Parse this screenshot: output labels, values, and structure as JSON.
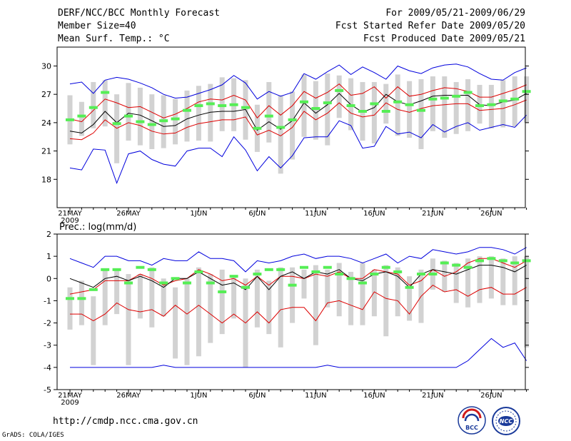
{
  "header": {
    "title": "DERF/NCC/BCC Monthly Forecast",
    "members": "Member Size=40",
    "variable": "Mean Surf. Temp.: °C",
    "period": "For 2009/05/21-2009/06/29",
    "started": "Fcst Started Refer Date 2009/05/20",
    "produced": "Fcst Produced Date 2009/05/21"
  },
  "footer": {
    "url": "http://cmdp.ncc.cma.gov.cn",
    "credit": "GrADS: COLA/IGES",
    "logo_bcc": "BCC",
    "logo_ncc": "NCC"
  },
  "colors": {
    "bar": "#d2d2d2",
    "median": "#55ee55",
    "mean": "#000000",
    "spread": "#dd0000",
    "extremes": "#0000dd"
  },
  "chart_data": [
    {
      "type": "line",
      "name": "temperature",
      "title": "",
      "ylabel": "Mean Surf. Temp.: °C",
      "ylim": [
        15,
        32
      ],
      "yticks": [
        18,
        21,
        24,
        27,
        30
      ],
      "x_tick_labels": [
        "21MAY",
        "26MAY",
        "1JUN",
        "6JUN",
        "11JUN",
        "16JUN",
        "21JUN",
        "26JUN"
      ],
      "x_tick_days": [
        0,
        5,
        11,
        16,
        21,
        26,
        31,
        36
      ],
      "year_label": "2009",
      "days": 40,
      "series": [
        {
          "name": "max",
          "color": "#0000dd",
          "values": [
            28.1,
            28.3,
            27.1,
            28.5,
            28.8,
            28.6,
            28.2,
            27.7,
            27.0,
            26.6,
            26.7,
            27.1,
            27.5,
            28.0,
            29.0,
            28.2,
            26.5,
            27.3,
            26.8,
            27.2,
            29.2,
            28.6,
            29.4,
            30.1,
            29.1,
            29.9,
            29.3,
            28.6,
            30.0,
            29.5,
            29.2,
            29.8,
            30.1,
            30.2,
            29.9,
            29.2,
            28.6,
            28.5,
            29.3,
            29.8
          ]
        },
        {
          "name": "mean_plus_sd",
          "color": "#dd0000",
          "values": [
            24.4,
            24.1,
            25.3,
            26.5,
            26.1,
            25.6,
            25.7,
            25.1,
            24.5,
            24.9,
            25.5,
            26.2,
            26.5,
            26.4,
            26.9,
            26.4,
            24.5,
            25.8,
            24.8,
            25.8,
            27.3,
            26.6,
            27.2,
            28.1,
            26.9,
            27.1,
            27.8,
            26.6,
            27.8,
            26.8,
            27.0,
            27.4,
            27.7,
            27.6,
            27.3,
            26.7,
            26.7,
            27.1,
            27.5,
            28.0
          ]
        },
        {
          "name": "mean",
          "color": "#000000",
          "values": [
            23.1,
            22.9,
            23.8,
            25.2,
            24.0,
            25.0,
            24.8,
            24.2,
            23.6,
            23.7,
            24.4,
            24.8,
            25.1,
            25.2,
            25.2,
            25.4,
            23.2,
            24.1,
            23.3,
            24.2,
            26.1,
            25.0,
            25.9,
            27.1,
            25.9,
            25.1,
            25.6,
            27.0,
            26.2,
            25.9,
            26.3,
            26.8,
            26.9,
            26.9,
            26.9,
            25.9,
            25.8,
            26.2,
            26.4,
            27.1
          ]
        },
        {
          "name": "mean_minus_sd",
          "color": "#dd0000",
          "values": [
            22.3,
            22.2,
            22.9,
            24.3,
            23.4,
            24.0,
            23.7,
            23.1,
            22.8,
            22.9,
            23.5,
            23.9,
            24.1,
            24.3,
            24.3,
            24.6,
            22.7,
            23.2,
            22.6,
            23.5,
            25.2,
            24.3,
            25.0,
            26.1,
            25.0,
            24.6,
            24.8,
            26.1,
            25.4,
            25.1,
            25.5,
            25.8,
            25.9,
            26.0,
            26.0,
            25.3,
            25.4,
            25.5,
            25.9,
            26.4
          ]
        },
        {
          "name": "min",
          "color": "#0000dd",
          "values": [
            19.2,
            19.0,
            21.2,
            21.1,
            17.6,
            20.7,
            21.0,
            20.1,
            19.6,
            19.4,
            21.0,
            21.3,
            21.3,
            20.4,
            22.5,
            21.1,
            18.9,
            20.4,
            19.2,
            20.5,
            22.4,
            22.5,
            22.5,
            24.2,
            23.7,
            21.3,
            21.5,
            23.6,
            22.8,
            23.0,
            22.4,
            23.8,
            23.0,
            23.6,
            24.0,
            23.2,
            23.5,
            23.8,
            23.5,
            24.8
          ]
        }
      ],
      "bars": {
        "low": [
          21.7,
          22.6,
          23.4,
          23.6,
          19.7,
          22.1,
          21.6,
          21.2,
          21.3,
          21.7,
          22.0,
          22.1,
          22.0,
          23.1,
          23.1,
          22.2,
          20.9,
          21.9,
          18.6,
          20.1,
          22.5,
          22.2,
          21.6,
          24.5,
          23.2,
          22.1,
          21.8,
          23.9,
          22.6,
          22.4,
          21.2,
          23.1,
          22.4,
          22.8,
          23.1,
          23.9,
          23.4,
          23.5,
          23.6,
          24.0
        ],
        "high": [
          26.9,
          26.2,
          28.3,
          28.5,
          27.0,
          28.2,
          27.7,
          27.0,
          26.9,
          26.5,
          27.4,
          27.9,
          28.1,
          28.8,
          28.7,
          28.5,
          25.9,
          28.3,
          26.9,
          27.3,
          29.1,
          28.4,
          29.2,
          29.0,
          28.7,
          28.3,
          28.3,
          28.1,
          29.1,
          28.4,
          28.6,
          28.9,
          28.9,
          28.3,
          28.6,
          28.0,
          28.0,
          28.5,
          28.9,
          28.9
        ]
      },
      "median": [
        24.3,
        24.7,
        25.6,
        27.2,
        23.9,
        24.7,
        24.1,
        23.8,
        24.2,
        24.4,
        25.3,
        25.8,
        26.0,
        25.8,
        25.9,
        25.6,
        23.4,
        24.7,
        23.5,
        24.3,
        26.2,
        25.5,
        26.1,
        27.4,
        25.8,
        25.2,
        26.0,
        25.2,
        26.2,
        25.9,
        25.3,
        26.5,
        26.6,
        26.8,
        27.2,
        25.8,
        25.9,
        26.3,
        26.5,
        27.3
      ]
    },
    {
      "type": "line",
      "name": "precipitation",
      "title": "",
      "ylabel": "Prec.: log(mm/d)",
      "ylim": [
        -5,
        2
      ],
      "yticks": [
        -5,
        -4,
        -3,
        -2,
        -1,
        0,
        1,
        2
      ],
      "x_tick_labels": [
        "21MAY",
        "26MAY",
        "1JUN",
        "6JUN",
        "11JUN",
        "16JUN",
        "21JUN",
        "26JUN"
      ],
      "x_tick_days": [
        0,
        5,
        11,
        16,
        21,
        26,
        31,
        36
      ],
      "year_label": "2009",
      "days": 40,
      "series": [
        {
          "name": "max",
          "color": "#0000dd",
          "values": [
            0.9,
            0.7,
            0.5,
            1.0,
            1.0,
            0.8,
            0.8,
            0.6,
            0.9,
            0.8,
            0.8,
            1.2,
            0.9,
            0.9,
            0.8,
            0.3,
            0.8,
            0.7,
            0.8,
            1.0,
            1.1,
            0.9,
            1.0,
            1.0,
            0.9,
            0.7,
            0.9,
            1.1,
            0.7,
            1.0,
            0.9,
            1.3,
            1.2,
            1.1,
            1.2,
            1.4,
            1.4,
            1.3,
            1.1,
            1.4
          ]
        },
        {
          "name": "mean_plus_sd",
          "color": "#dd0000",
          "values": [
            -0.7,
            -0.6,
            -0.5,
            -0.1,
            -0.1,
            -0.1,
            0.2,
            0.0,
            -0.3,
            -0.1,
            0.0,
            0.4,
            0.2,
            -0.1,
            0.0,
            -0.3,
            0.1,
            -0.3,
            0.1,
            0.1,
            0.0,
            0.2,
            0.1,
            0.3,
            0.0,
            0.0,
            0.4,
            0.3,
            0.2,
            -0.3,
            -0.1,
            0.4,
            0.1,
            0.3,
            0.7,
            0.9,
            0.9,
            0.7,
            0.5,
            0.8
          ]
        },
        {
          "name": "mean",
          "color": "#000000",
          "values": [
            0.0,
            -0.2,
            -0.4,
            0.0,
            0.1,
            -0.1,
            0.1,
            -0.1,
            -0.4,
            0.0,
            0.0,
            0.3,
            0.0,
            -0.3,
            -0.2,
            -0.5,
            0.1,
            -0.5,
            0.1,
            0.3,
            0.0,
            0.3,
            0.2,
            0.4,
            0.0,
            -0.1,
            0.2,
            0.3,
            0.1,
            -0.4,
            0.2,
            0.4,
            0.3,
            0.2,
            0.4,
            0.6,
            0.6,
            0.5,
            0.3,
            0.6
          ]
        },
        {
          "name": "mean_minus_sd",
          "color": "#dd0000",
          "values": [
            -1.6,
            -1.6,
            -1.9,
            -1.6,
            -1.1,
            -1.4,
            -1.5,
            -1.4,
            -1.7,
            -1.2,
            -1.6,
            -1.2,
            -1.6,
            -2.0,
            -1.6,
            -2.0,
            -1.5,
            -2.0,
            -1.4,
            -1.3,
            -1.3,
            -1.9,
            -1.1,
            -1.0,
            -1.2,
            -1.4,
            -0.6,
            -0.9,
            -1.0,
            -1.6,
            -0.8,
            -0.3,
            -0.6,
            -0.5,
            -0.8,
            -0.5,
            -0.4,
            -0.7,
            -0.7,
            -0.4
          ]
        },
        {
          "name": "min",
          "color": "#0000dd",
          "values": [
            -4.0,
            -4.0,
            -4.0,
            -4.0,
            -4.0,
            -4.0,
            -4.0,
            -4.0,
            -3.9,
            -4.0,
            -4.0,
            -4.0,
            -4.0,
            -4.0,
            -4.0,
            -4.0,
            -4.0,
            -4.0,
            -4.0,
            -4.0,
            -4.0,
            -4.0,
            -3.9,
            -4.0,
            -4.0,
            -4.0,
            -4.0,
            -4.0,
            -4.0,
            -4.0,
            -4.0,
            -4.0,
            -4.0,
            -4.0,
            -3.7,
            -3.2,
            -2.7,
            -3.1,
            -2.9,
            -3.7
          ]
        }
      ],
      "bars": {
        "low": [
          -2.3,
          -2.1,
          -3.9,
          -2.1,
          -1.6,
          -3.9,
          -1.8,
          -2.2,
          -1.7,
          -3.6,
          -3.9,
          -3.5,
          -2.9,
          -2.5,
          -1.8,
          -4.0,
          -2.2,
          -2.5,
          -3.1,
          -2.0,
          -0.9,
          -3.0,
          -1.3,
          -1.7,
          -2.1,
          -2.1,
          -1.7,
          -2.6,
          -1.7,
          -1.9,
          -2.0,
          -0.5,
          -0.6,
          -1.1,
          -1.3,
          -1.1,
          -0.9,
          -1.2,
          -1.2,
          -3.1
        ],
        "high": [
          -0.4,
          -0.1,
          -0.8,
          0.4,
          0.4,
          0.2,
          0.2,
          0.5,
          0.0,
          -0.4,
          0.0,
          0.5,
          0.2,
          0.4,
          0.1,
          0.0,
          0.4,
          -0.1,
          0.5,
          0.5,
          0.4,
          0.6,
          0.4,
          0.7,
          0.3,
          0.7,
          0.4,
          0.6,
          0.5,
          0.1,
          0.4,
          0.9,
          0.8,
          0.7,
          0.9,
          1.0,
          1.0,
          0.9,
          1.0,
          1.0
        ]
      },
      "median": [
        -0.9,
        -0.9,
        -0.5,
        0.4,
        0.4,
        -0.2,
        0.5,
        0.4,
        -0.2,
        0.0,
        -0.2,
        0.3,
        -0.2,
        -0.6,
        0.1,
        -0.4,
        0.2,
        0.4,
        0.4,
        -0.3,
        0.5,
        0.3,
        0.5,
        0.2,
        0.0,
        -0.2,
        0.2,
        0.5,
        0.3,
        -0.4,
        0.2,
        0.2,
        0.7,
        0.6,
        0.5,
        0.8,
        0.9,
        0.8,
        0.7,
        0.8
      ]
    }
  ]
}
